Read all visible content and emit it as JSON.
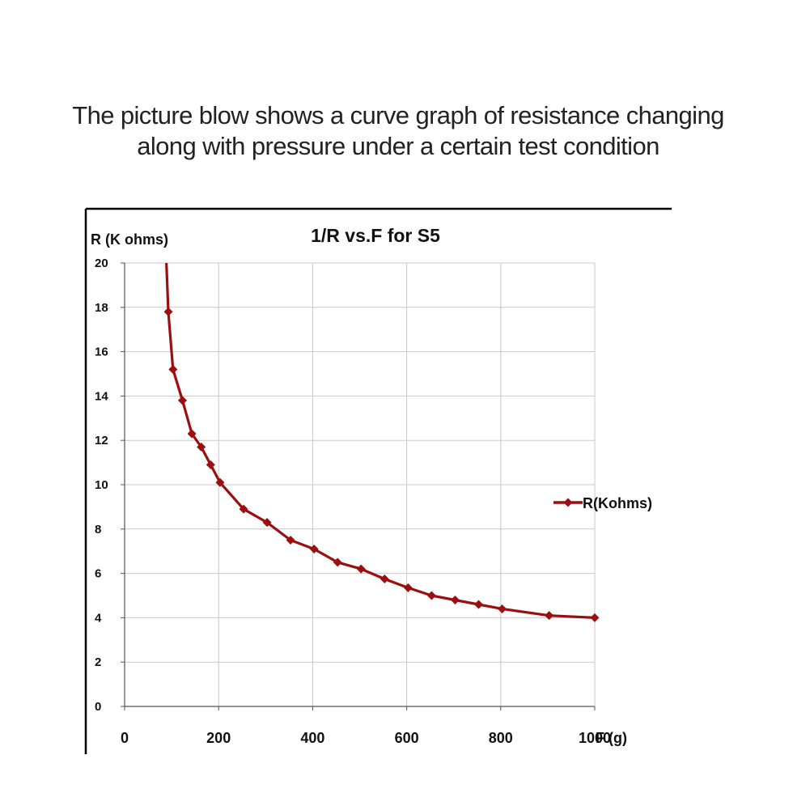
{
  "caption": {
    "line1": "The picture blow shows a curve graph of resistance changing",
    "line2": "along with pressure under a certain test condition"
  },
  "colors": {
    "series": "#9B0F10",
    "grid": "#C8C8C8",
    "frame": "#000000",
    "axis": "#555555"
  },
  "chart_data": {
    "type": "line",
    "title": "1/R vs.F for S5",
    "ylabel": "R (K ohms)",
    "xlabel": "F (g)",
    "xlim": [
      0,
      1000
    ],
    "ylim": [
      0,
      20
    ],
    "x_ticks": [
      0,
      200,
      400,
      600,
      800,
      1000
    ],
    "y_ticks": [
      0,
      2,
      4,
      6,
      8,
      10,
      12,
      14,
      16,
      18,
      20
    ],
    "grid": true,
    "legend_position": "right",
    "series": [
      {
        "name": "R(Kohms)",
        "color": "#9B0F10",
        "marker": "diamond",
        "x": [
          88,
          93,
          103,
          123,
          143,
          163,
          183,
          203,
          253,
          303,
          353,
          403,
          453,
          503,
          553,
          603,
          653,
          703,
          753,
          803,
          903,
          1003
        ],
        "y": [
          20.5,
          17.8,
          15.2,
          13.8,
          12.3,
          11.7,
          10.9,
          10.1,
          8.9,
          8.3,
          7.5,
          7.1,
          6.5,
          6.2,
          5.75,
          5.35,
          5.0,
          4.8,
          4.6,
          4.4,
          4.1,
          4.0
        ],
        "marker_mask": [
          false,
          true,
          true,
          true,
          true,
          true,
          true,
          true,
          true,
          true,
          true,
          true,
          true,
          true,
          true,
          true,
          true,
          true,
          true,
          true,
          true,
          true
        ]
      }
    ]
  }
}
